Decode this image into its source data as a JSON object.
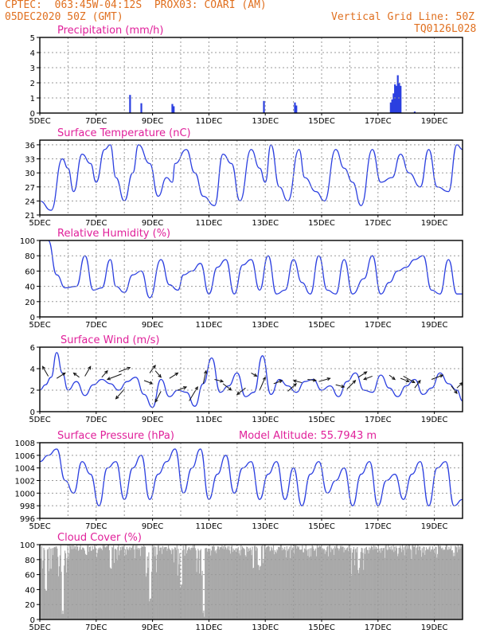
{
  "header": {
    "line1": "CPTEC:  063:45W-04:12S  PROX03: COARI (AM)",
    "line2": "05DEC2020 50Z (GMT)",
    "grid_note": "Vertical Grid Line: 50Z",
    "code": "TQ0126L028"
  },
  "colors": {
    "header": "#e07020",
    "title": "#e0209a",
    "series": "#2b3fe0",
    "cloud": "#a9a9a9",
    "grid": "#999999"
  },
  "x_ticks": [
    "5DEC",
    "7DEC",
    "9DEC",
    "11DEC",
    "13DEC",
    "15DEC",
    "17DEC",
    "19DEC"
  ],
  "chart_data": [
    {
      "type": "bar",
      "title": "Precipitation (mm/h)",
      "ylim": [
        0,
        5
      ],
      "yticks": [
        0,
        1,
        2,
        3,
        4,
        5
      ],
      "x_range_days": [
        5.0,
        20.0
      ],
      "points": [
        [
          8.2,
          1.2
        ],
        [
          8.6,
          0.65
        ],
        [
          9.7,
          0.6
        ],
        [
          9.75,
          0.45
        ],
        [
          12.95,
          0.8
        ],
        [
          14.05,
          0.7
        ],
        [
          14.1,
          0.5
        ],
        [
          17.45,
          0.7
        ],
        [
          17.5,
          0.9
        ],
        [
          17.55,
          1.3
        ],
        [
          17.6,
          1.9
        ],
        [
          17.65,
          1.8
        ],
        [
          17.7,
          2.5
        ],
        [
          17.75,
          2.0
        ],
        [
          17.8,
          1.8
        ],
        [
          18.3,
          0.1
        ]
      ]
    },
    {
      "type": "line",
      "title": "Surface Temperature (nC)",
      "ylim": [
        21,
        37
      ],
      "yticks": [
        21,
        24,
        27,
        30,
        33,
        36
      ],
      "x": [
        5.0,
        5.4,
        5.8,
        6.0,
        6.2,
        6.5,
        6.8,
        7.0,
        7.3,
        7.5,
        7.7,
        8.0,
        8.3,
        8.5,
        8.9,
        9.2,
        9.5,
        9.7,
        9.8,
        10.2,
        10.5,
        10.8,
        11.2,
        11.5,
        11.8,
        12.1,
        12.5,
        12.8,
        13.0,
        13.2,
        13.5,
        13.8,
        14.2,
        14.4,
        14.8,
        15.1,
        15.5,
        15.8,
        16.1,
        16.4,
        16.8,
        17.1,
        17.5,
        17.8,
        18.1,
        18.5,
        18.8,
        19.1,
        19.5,
        19.8,
        20.0
      ],
      "y": [
        24,
        22,
        33,
        31,
        26,
        34,
        32,
        28,
        35,
        36,
        29,
        24,
        30,
        36,
        32,
        25,
        29,
        28,
        32,
        35,
        30,
        25,
        23,
        34,
        32,
        24,
        35,
        31,
        28,
        36,
        27,
        24,
        35,
        29,
        26,
        24,
        35,
        31,
        28,
        23,
        35,
        28,
        29,
        34,
        30,
        27,
        35,
        27,
        26,
        36,
        35
      ]
    },
    {
      "type": "line",
      "title": "Relative Humidity (%)",
      "ylim": [
        0,
        100
      ],
      "yticks": [
        0,
        20,
        40,
        60,
        80,
        100
      ],
      "x": [
        5.0,
        5.3,
        5.6,
        5.9,
        6.3,
        6.6,
        6.9,
        7.2,
        7.5,
        7.7,
        8.0,
        8.3,
        8.6,
        8.9,
        9.3,
        9.6,
        9.9,
        10.1,
        10.4,
        10.7,
        11.0,
        11.3,
        11.6,
        11.9,
        12.2,
        12.5,
        12.8,
        13.1,
        13.4,
        13.7,
        14.0,
        14.3,
        14.6,
        14.9,
        15.2,
        15.5,
        15.8,
        16.1,
        16.5,
        16.8,
        17.1,
        17.4,
        17.7,
        18.0,
        18.3,
        18.6,
        18.9,
        19.2,
        19.5,
        19.8,
        20.0
      ],
      "y": [
        100,
        100,
        55,
        38,
        40,
        80,
        35,
        38,
        75,
        40,
        32,
        55,
        60,
        25,
        75,
        42,
        35,
        55,
        60,
        70,
        30,
        65,
        75,
        30,
        68,
        75,
        35,
        80,
        30,
        35,
        75,
        45,
        30,
        80,
        35,
        30,
        75,
        30,
        50,
        80,
        30,
        45,
        60,
        65,
        75,
        80,
        35,
        30,
        75,
        30,
        30
      ]
    },
    {
      "type": "line",
      "title": "Surface Wind (m/s)",
      "ylim": [
        0,
        6
      ],
      "yticks": [
        0,
        2,
        4,
        6
      ],
      "x": [
        5.0,
        5.2,
        5.4,
        5.6,
        5.8,
        6.0,
        6.3,
        6.6,
        6.9,
        7.2,
        7.5,
        7.8,
        8.1,
        8.4,
        8.7,
        9.0,
        9.3,
        9.6,
        9.9,
        10.2,
        10.5,
        10.8,
        11.1,
        11.4,
        11.7,
        12.0,
        12.3,
        12.6,
        12.9,
        13.2,
        13.5,
        13.8,
        14.1,
        14.4,
        14.7,
        15.0,
        15.3,
        15.6,
        15.9,
        16.2,
        16.5,
        16.8,
        17.1,
        17.4,
        17.7,
        18.0,
        18.3,
        18.6,
        18.9,
        19.2,
        19.5,
        19.8,
        20.0
      ],
      "y": [
        2.0,
        2.5,
        3.2,
        5.5,
        3.6,
        2.0,
        2.8,
        1.5,
        2.5,
        3.0,
        2.6,
        2.0,
        2.8,
        3.2,
        1.6,
        0.4,
        3.0,
        1.4,
        2.0,
        1.8,
        0.5,
        2.6,
        5.0,
        1.8,
        2.4,
        3.6,
        1.4,
        1.8,
        5.2,
        1.6,
        3.0,
        2.4,
        1.8,
        2.8,
        3.0,
        2.0,
        2.4,
        1.4,
        2.8,
        3.6,
        2.0,
        1.8,
        3.4,
        2.2,
        1.4,
        2.4,
        3.0,
        1.6,
        2.2,
        3.6,
        2.6,
        2.0,
        1.0
      ]
    },
    {
      "type": "line",
      "title": "Surface Pressure (hPa)",
      "ylim": [
        996,
        1008
      ],
      "yticks": [
        996,
        998,
        1000,
        1002,
        1004,
        1006,
        1008
      ],
      "x": [
        5.0,
        5.3,
        5.6,
        5.9,
        6.2,
        6.5,
        6.8,
        7.1,
        7.4,
        7.7,
        8.0,
        8.3,
        8.6,
        8.9,
        9.2,
        9.5,
        9.8,
        10.1,
        10.4,
        10.7,
        11.0,
        11.3,
        11.6,
        11.9,
        12.2,
        12.5,
        12.8,
        13.1,
        13.4,
        13.7,
        14.0,
        14.3,
        14.6,
        14.9,
        15.2,
        15.5,
        15.8,
        16.1,
        16.4,
        16.7,
        17.0,
        17.3,
        17.6,
        17.9,
        18.2,
        18.5,
        18.8,
        19.1,
        19.4,
        19.7,
        20.0
      ],
      "y": [
        1005,
        1006,
        1007,
        1002,
        1000,
        1005,
        1003,
        998,
        1004,
        1005,
        999,
        1004,
        1006,
        999,
        1003,
        1005,
        1007,
        1000,
        1004,
        1007,
        999,
        1003,
        1006,
        1000,
        1004,
        1005,
        999,
        1003,
        1005,
        999,
        1004,
        998,
        1003,
        1005,
        1000,
        1002,
        1004,
        998,
        1003,
        1005,
        998,
        1002,
        1003,
        999,
        1003,
        1005,
        998,
        1004,
        1005,
        998,
        999
      ]
    },
    {
      "type": "bar",
      "title": "Cloud Cover (%)",
      "ylim": [
        0,
        100
      ],
      "yticks": [
        0,
        20,
        40,
        60,
        80,
        100
      ],
      "x_range_days": [
        5.0,
        20.0
      ],
      "dips": [
        [
          5.2,
          35
        ],
        [
          5.8,
          5
        ],
        [
          7.5,
          60
        ],
        [
          8.9,
          20
        ],
        [
          10.0,
          40
        ],
        [
          10.8,
          2
        ],
        [
          12.8,
          65
        ],
        [
          16.3,
          60
        ]
      ]
    }
  ],
  "model_altitude": "Model Altitude: 55.7943 m"
}
